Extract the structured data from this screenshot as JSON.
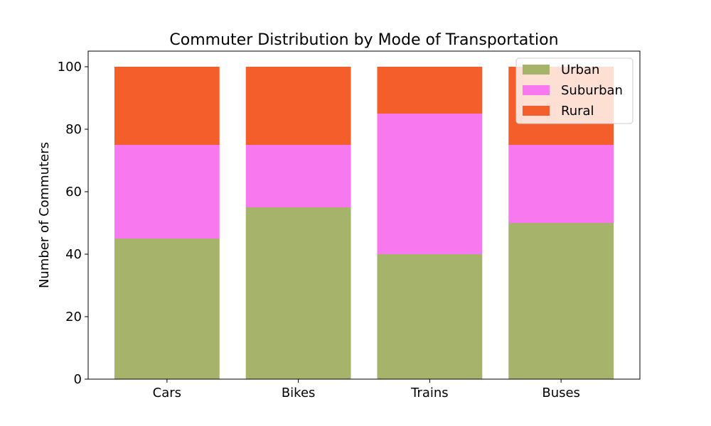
{
  "chart_data": {
    "type": "bar",
    "stacked": true,
    "title": "Commuter Distribution by Mode of Transportation",
    "xlabel": "",
    "ylabel": "Number of Commuters",
    "categories": [
      "Cars",
      "Bikes",
      "Trains",
      "Buses"
    ],
    "series": [
      {
        "name": "Urban",
        "values": [
          45,
          55,
          40,
          50
        ],
        "color": "#a5b36b"
      },
      {
        "name": "Suburban",
        "values": [
          30,
          20,
          45,
          25
        ],
        "color": "#f878f0"
      },
      {
        "name": "Rural",
        "values": [
          25,
          25,
          15,
          25
        ],
        "color": "#f45e2a"
      }
    ],
    "ylim": [
      0,
      105
    ],
    "yticks": [
      0,
      20,
      40,
      60,
      80,
      100
    ],
    "grid": false,
    "legend_position": "top-right"
  }
}
